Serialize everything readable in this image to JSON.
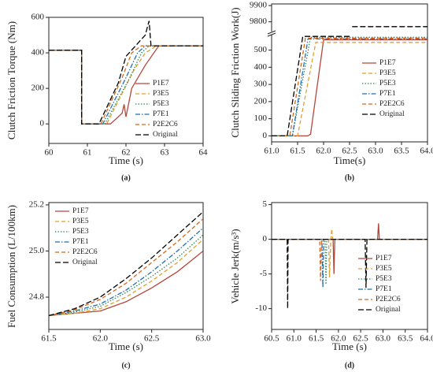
{
  "chart_data": [
    {
      "type": "line",
      "caption": "(a)",
      "x_label": "Time (s)",
      "y_label": "Clutch Friction Torque (Nm)",
      "xlim": [
        60,
        64
      ],
      "xticks": [
        60,
        61,
        62,
        63,
        64
      ],
      "ylim": [
        -110,
        600
      ],
      "yticks": [
        0,
        200,
        400,
        600
      ],
      "legend": "right",
      "series": [
        {
          "name": "P1E7",
          "color": "#b5473a",
          "linestyle": "solid",
          "x": [
            60,
            60.85,
            60.85,
            61.6,
            61.9,
            61.95,
            62.0,
            62.15,
            62.5,
            62.85,
            64
          ],
          "values": [
            415,
            415,
            0,
            0,
            60,
            110,
            40,
            200,
            330,
            440,
            440
          ]
        },
        {
          "name": "P3E5",
          "color": "#e0a030",
          "linestyle": "dashed",
          "x": [
            60,
            60.85,
            60.85,
            61.5,
            62.2,
            62.5,
            62.8,
            64
          ],
          "values": [
            415,
            415,
            0,
            0,
            300,
            400,
            440,
            440
          ]
        },
        {
          "name": "P5E3",
          "color": "#2e8b57",
          "linestyle": "dotted",
          "x": [
            60,
            60.85,
            60.85,
            61.45,
            62.1,
            62.4,
            62.6,
            64
          ],
          "values": [
            415,
            415,
            0,
            0,
            260,
            400,
            440,
            440
          ]
        },
        {
          "name": "P7E1",
          "color": "#1f6fb4",
          "linestyle": "dashdot",
          "x": [
            60,
            60.85,
            60.85,
            61.4,
            62.0,
            62.3,
            62.5,
            64
          ],
          "values": [
            415,
            415,
            0,
            0,
            260,
            400,
            440,
            440
          ]
        },
        {
          "name": "P2E2C6",
          "color": "#d2691e",
          "linestyle": "dashed",
          "x": [
            60,
            60.85,
            60.85,
            61.35,
            61.9,
            62.15,
            62.4,
            64
          ],
          "values": [
            415,
            415,
            0,
            0,
            260,
            400,
            440,
            440
          ]
        },
        {
          "name": "Original",
          "color": "#000000",
          "linestyle": "longdash",
          "x": [
            60,
            60.85,
            60.85,
            61.3,
            61.8,
            62.0,
            62.5,
            62.6,
            62.65,
            64
          ],
          "values": [
            415,
            415,
            0,
            0,
            230,
            380,
            500,
            580,
            440,
            440
          ]
        }
      ]
    },
    {
      "type": "line",
      "caption": "(b)",
      "x_label": "Time(s)",
      "y_label": "Clutch Sliding Friction Work(J)",
      "xlim": [
        61.0,
        64.0
      ],
      "xticks": [
        {
          "value": 61,
          "label": "61.0"
        },
        {
          "value": 61.5,
          "label": "61.5"
        },
        {
          "value": 62,
          "label": "62.0"
        },
        {
          "value": 62.5,
          "label": "62.5"
        },
        {
          "value": 63,
          "label": "63.0"
        },
        {
          "value": 63.5,
          "label": "63.5"
        },
        {
          "value": 64,
          "label": "64.0"
        }
      ],
      "ylim": [
        -35,
        590
      ],
      "yticks": [
        0,
        100,
        200,
        300,
        400,
        500
      ],
      "y2lim": [
        9740,
        9910
      ],
      "y2ticks": [
        9800,
        9900
      ],
      "legend": "right",
      "series": [
        {
          "name": "P1E7",
          "color": "#b5473a",
          "linestyle": "solid",
          "x": [
            61,
            61.7,
            61.75,
            62.0,
            64
          ],
          "values": [
            0,
            0,
            10,
            560,
            560
          ]
        },
        {
          "name": "P3E5",
          "color": "#e0a030",
          "linestyle": "dashed",
          "x": [
            61,
            61.5,
            61.85,
            64
          ],
          "values": [
            0,
            0,
            545,
            545
          ]
        },
        {
          "name": "P5E3",
          "color": "#2e8b57",
          "linestyle": "dotted",
          "x": [
            61,
            61.4,
            61.75,
            64
          ],
          "values": [
            0,
            0,
            575,
            575
          ]
        },
        {
          "name": "P7E1",
          "color": "#1f6fb4",
          "linestyle": "dashdot",
          "x": [
            61,
            61.4,
            61.7,
            64
          ],
          "values": [
            0,
            0,
            565,
            565
          ]
        },
        {
          "name": "P2E2C6",
          "color": "#d2691e",
          "linestyle": "dashed",
          "x": [
            61,
            61.35,
            61.65,
            64
          ],
          "values": [
            0,
            0,
            570,
            570
          ]
        },
        {
          "name": "Original",
          "color": "#000000",
          "linestyle": "longdash",
          "x": [
            61,
            61.3,
            61.6,
            62.5
          ],
          "values": [
            0,
            0,
            580,
            580
          ]
        },
        {
          "color": "#000000",
          "linestyle": "longdash",
          "axis": "y2",
          "x": [
            62.55,
            64
          ],
          "values": [
            9770,
            9770
          ]
        }
      ]
    },
    {
      "type": "line",
      "caption": "(c)",
      "x_label": "Time (s)",
      "y_label": "Fuel Consumption (L/100km)",
      "xlim": [
        61.5,
        63.0
      ],
      "xticks": [
        {
          "value": 61.5,
          "label": "61.5"
        },
        {
          "value": 62,
          "label": "62.0"
        },
        {
          "value": 62.5,
          "label": "62.5"
        },
        {
          "value": 63,
          "label": "63.0"
        }
      ],
      "ylim": [
        24.66,
        25.21
      ],
      "yticks": [
        24.8,
        {
          "value": 25,
          "label": "25.0"
        },
        25.2
      ],
      "legend": "upper left",
      "series": [
        {
          "name": "P1E7",
          "color": "#b5473a",
          "linestyle": "solid",
          "x": [
            61.5,
            61.75,
            62,
            62.25,
            62.5,
            62.75,
            63
          ],
          "values": [
            24.72,
            24.73,
            24.74,
            24.78,
            24.84,
            24.91,
            25.0
          ]
        },
        {
          "name": "P3E5",
          "color": "#e0a030",
          "linestyle": "dashed",
          "x": [
            61.5,
            61.75,
            62,
            62.25,
            62.5,
            62.75,
            63
          ],
          "values": [
            24.72,
            24.73,
            24.75,
            24.8,
            24.87,
            24.95,
            25.05
          ]
        },
        {
          "name": "P5E3",
          "color": "#2e8b57",
          "linestyle": "dotted",
          "x": [
            61.5,
            61.75,
            62,
            62.25,
            62.5,
            62.75,
            63
          ],
          "values": [
            24.72,
            24.735,
            24.76,
            24.82,
            24.89,
            24.97,
            25.07
          ]
        },
        {
          "name": "P7E1",
          "color": "#1f6fb4",
          "linestyle": "dashdot",
          "x": [
            61.5,
            61.75,
            62,
            62.25,
            62.5,
            62.75,
            63
          ],
          "values": [
            24.72,
            24.74,
            24.77,
            24.83,
            24.91,
            25.0,
            25.1
          ]
        },
        {
          "name": "P2E2C6",
          "color": "#d2691e",
          "linestyle": "dashed",
          "x": [
            61.5,
            61.75,
            62,
            62.25,
            62.5,
            62.75,
            63
          ],
          "values": [
            24.72,
            24.745,
            24.79,
            24.86,
            24.95,
            25.04,
            25.14
          ]
        },
        {
          "name": "Original",
          "color": "#000000",
          "linestyle": "longdash",
          "x": [
            61.5,
            61.75,
            62,
            62.25,
            62.5,
            62.75,
            63
          ],
          "values": [
            24.72,
            24.75,
            24.8,
            24.88,
            24.97,
            25.07,
            25.17
          ]
        }
      ]
    },
    {
      "type": "line",
      "caption": "(d)",
      "x_label": "Time (s)",
      "y_label": "Vehicle Jerk(m/s³)",
      "xlim": [
        60.5,
        64.0
      ],
      "xticks": [
        {
          "value": 60.5,
          "label": "60.5"
        },
        {
          "value": 61,
          "label": "61.0"
        },
        {
          "value": 61.5,
          "label": "61.5"
        },
        {
          "value": 62,
          "label": "62.0"
        },
        {
          "value": 62.5,
          "label": "62.5"
        },
        {
          "value": 63,
          "label": "63.0"
        },
        {
          "value": 63.5,
          "label": "63.5"
        },
        {
          "value": 64,
          "label": "64.0"
        }
      ],
      "ylim": [
        -13,
        5.3
      ],
      "yticks": [
        -10,
        -5,
        0,
        5
      ],
      "legend": "lower right",
      "series": [
        {
          "name": "P1E7",
          "color": "#b5473a",
          "linestyle": "solid",
          "x": [
            60.5,
            61.88,
            61.9,
            61.92,
            62.88,
            62.9,
            62.92,
            64
          ],
          "values": [
            0,
            0,
            -5,
            0,
            0,
            2.3,
            0,
            0
          ]
        },
        {
          "name": "P3E5",
          "color": "#e0a030",
          "linestyle": "dashed",
          "x": [
            60.5,
            61.78,
            61.8,
            61.83,
            61.85,
            61.87,
            64
          ],
          "values": [
            0,
            0,
            -5.5,
            0,
            1.5,
            0,
            0
          ]
        },
        {
          "name": "P5E3",
          "color": "#2e8b57",
          "linestyle": "dotted",
          "x": [
            60.5,
            61.7,
            61.72,
            61.74,
            64
          ],
          "values": [
            0,
            0,
            -6.5,
            0,
            0
          ]
        },
        {
          "name": "P7E1",
          "color": "#1f6fb4",
          "linestyle": "dashdot",
          "x": [
            60.5,
            61.63,
            61.65,
            61.67,
            64
          ],
          "values": [
            0,
            0,
            -7,
            0,
            0
          ]
        },
        {
          "name": "P2E2C6",
          "color": "#d2691e",
          "linestyle": "dashed",
          "x": [
            60.5,
            61.58,
            61.6,
            61.62,
            64
          ],
          "values": [
            0,
            0,
            -6,
            0,
            0
          ]
        },
        {
          "name": "Original",
          "color": "#000000",
          "linestyle": "longdash",
          "x": [
            60.5,
            60.85,
            60.86,
            60.87,
            62.6,
            62.62,
            62.64,
            64
          ],
          "values": [
            0,
            0,
            -10,
            0,
            0,
            -7,
            0,
            0
          ]
        }
      ]
    }
  ]
}
